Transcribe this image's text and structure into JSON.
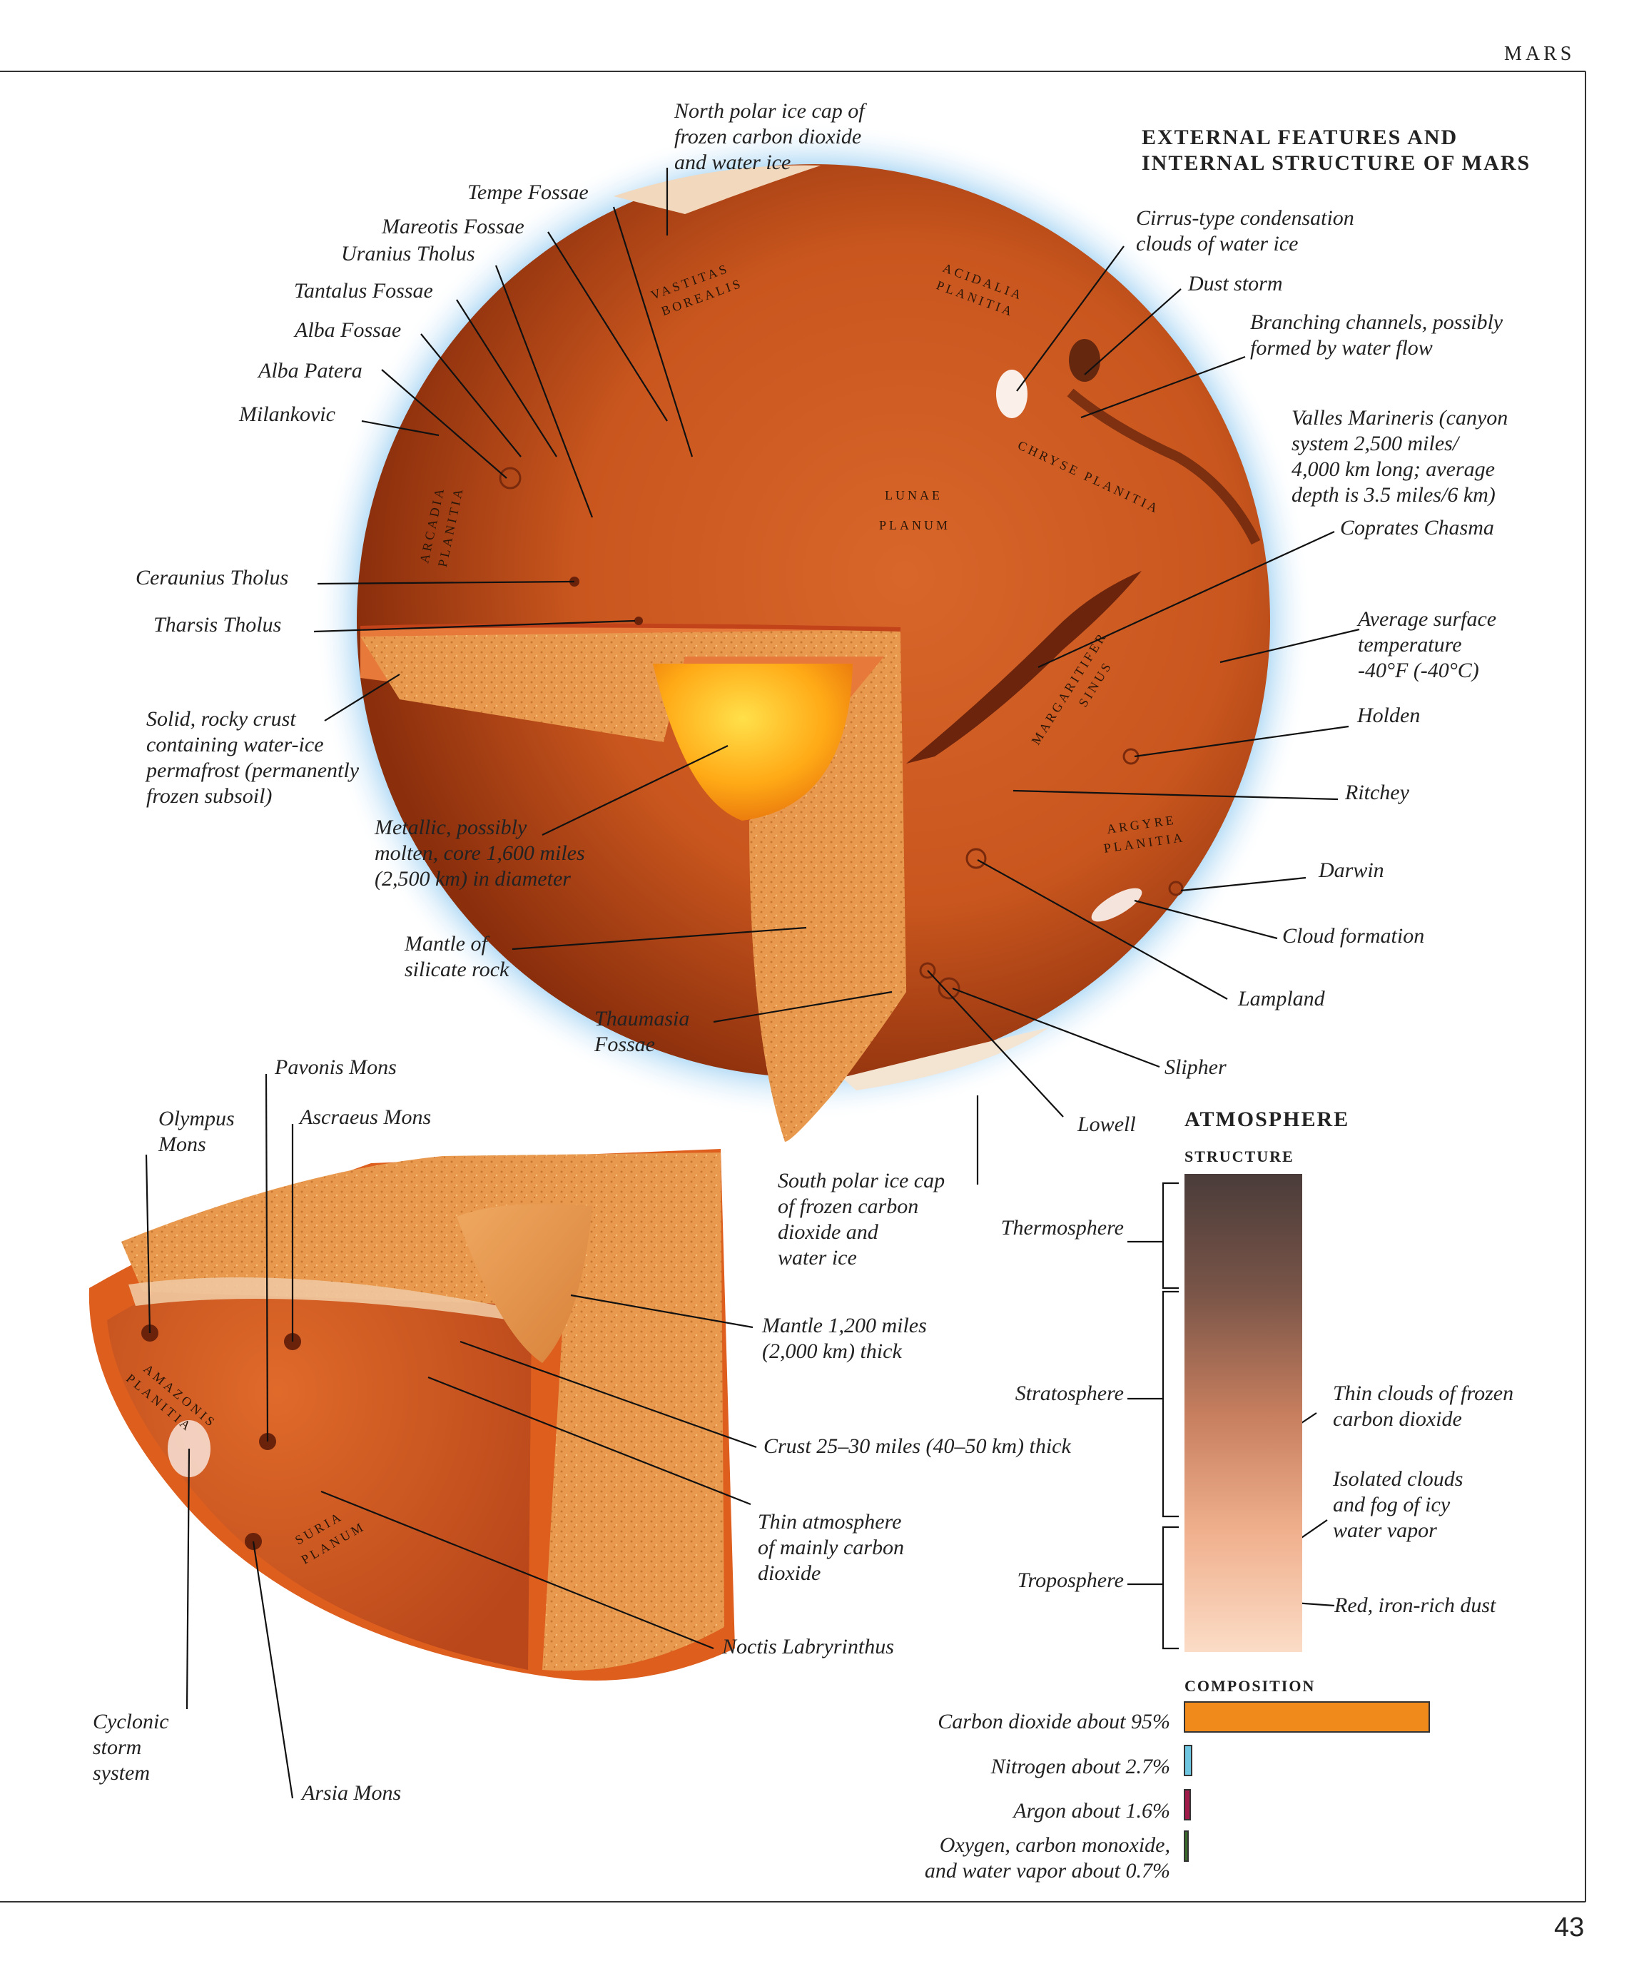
{
  "header": {
    "section": "MARS",
    "page_number": "43"
  },
  "title": "EXTERNAL FEATURES AND\nINTERNAL STRUCTURE OF MARS",
  "globe_labels": {
    "north_polar_cap": "North polar ice cap of\nfrozen carbon dioxide\nand water ice",
    "tempe_fossae": "Tempe Fossae",
    "mareotis_fossae": "Mareotis Fossae",
    "uranius_tholus": "Uranius Tholus",
    "tantalus_fossae": "Tantalus Fossae",
    "alba_fossae": "Alba Fossae",
    "alba_patera": "Alba Patera",
    "milankovic": "Milankovic",
    "ceraunius_tholus": "Ceraunius Tholus",
    "tharsis_tholus": "Tharsis Tholus",
    "crust": "Solid, rocky crust\ncontaining water-ice\npermafrost (permanently\nfrozen subsoil)",
    "core": "Metallic, possibly\nmolten, core 1,600 miles\n(2,500 km) in diameter",
    "mantle": "Mantle of\nsilicate rock",
    "thaumasia_fossae": "Thaumasia\nFossae",
    "cirrus_clouds": "Cirrus-type condensation\nclouds of  water ice",
    "dust_storm": "Dust storm",
    "branching_channels": "Branching channels, possibly\nformed by water flow",
    "valles_marineris": "Valles Marineris (canyon\nsystem 2,500 miles/\n4,000 km long; average\ndepth is 3.5 miles/6 km)",
    "coprates_chasma": "Coprates Chasma",
    "avg_temperature": "Average surface\ntemperature\n-40°F (-40°C)",
    "holden": "Holden",
    "ritchey": "Ritchey",
    "darwin": "Darwin",
    "cloud_formation": "Cloud formation",
    "lampland": "Lampland",
    "slipher": "Slipher",
    "lowell": "Lowell",
    "south_polar_cap": "South polar ice cap\nof  frozen carbon\ndioxide and\nwater ice"
  },
  "regions": {
    "vastitas": [
      "VASTITAS",
      "BOREALIS"
    ],
    "acidalia": [
      "ACIDALIA",
      "PLANITIA"
    ],
    "arcadia": [
      "ARCADIA",
      "PLANITIA"
    ],
    "lunae": [
      "LUNAE",
      "PLANUM"
    ],
    "chryse": "CHRYSE PLANITIA",
    "margaritifer": [
      "MARGARITIFER",
      "SINUS"
    ],
    "argyre": [
      "ARGYRE",
      "PLANITIA"
    ],
    "amazonis": [
      "AMAZONIS",
      "PLANITIA"
    ],
    "syria": [
      "SURIA",
      "PLANUM"
    ]
  },
  "wedge_labels": {
    "pavonis_mons": "Pavonis Mons",
    "olympus_mons": "Olympus\nMons",
    "ascraeus_mons": "Ascraeus Mons",
    "mantle_thickness": "Mantle 1,200 miles\n(2,000 km) thick",
    "crust_thickness": "Crust 25–30 miles (40–50 km) thick",
    "thin_atmosphere": "Thin atmosphere\nof  mainly carbon\ndioxide",
    "noctis": "Noctis Labryrinthus",
    "cyclonic_storm": "Cyclonic\nstorm\nsystem",
    "arsia_mons": "Arsia Mons"
  },
  "atmosphere": {
    "title": "ATMOSPHERE",
    "structure_title": "STRUCTURE",
    "layers": [
      "Thermosphere",
      "Stratosphere",
      "Troposphere"
    ],
    "notes": {
      "thin_clouds": "Thin clouds of  frozen\ncarbon dioxide",
      "isolated_clouds": "Isolated clouds\nand fog of  icy\nwater vapor",
      "red_dust": "Red, iron-rich dust"
    },
    "composition_title": "COMPOSITION",
    "composition": [
      {
        "label": "Carbon dioxide about 95%",
        "value": 95,
        "color": "#f08a1a"
      },
      {
        "label": "Nitrogen about 2.7%",
        "value": 2.7,
        "color": "#6ec6e0"
      },
      {
        "label": "Argon about 1.6%",
        "value": 1.6,
        "color": "#a01a4a"
      },
      {
        "label": "Oxygen, carbon monoxide,\nand water vapor about 0.7%",
        "value": 0.7,
        "color": "#3a6a2a"
      }
    ]
  }
}
